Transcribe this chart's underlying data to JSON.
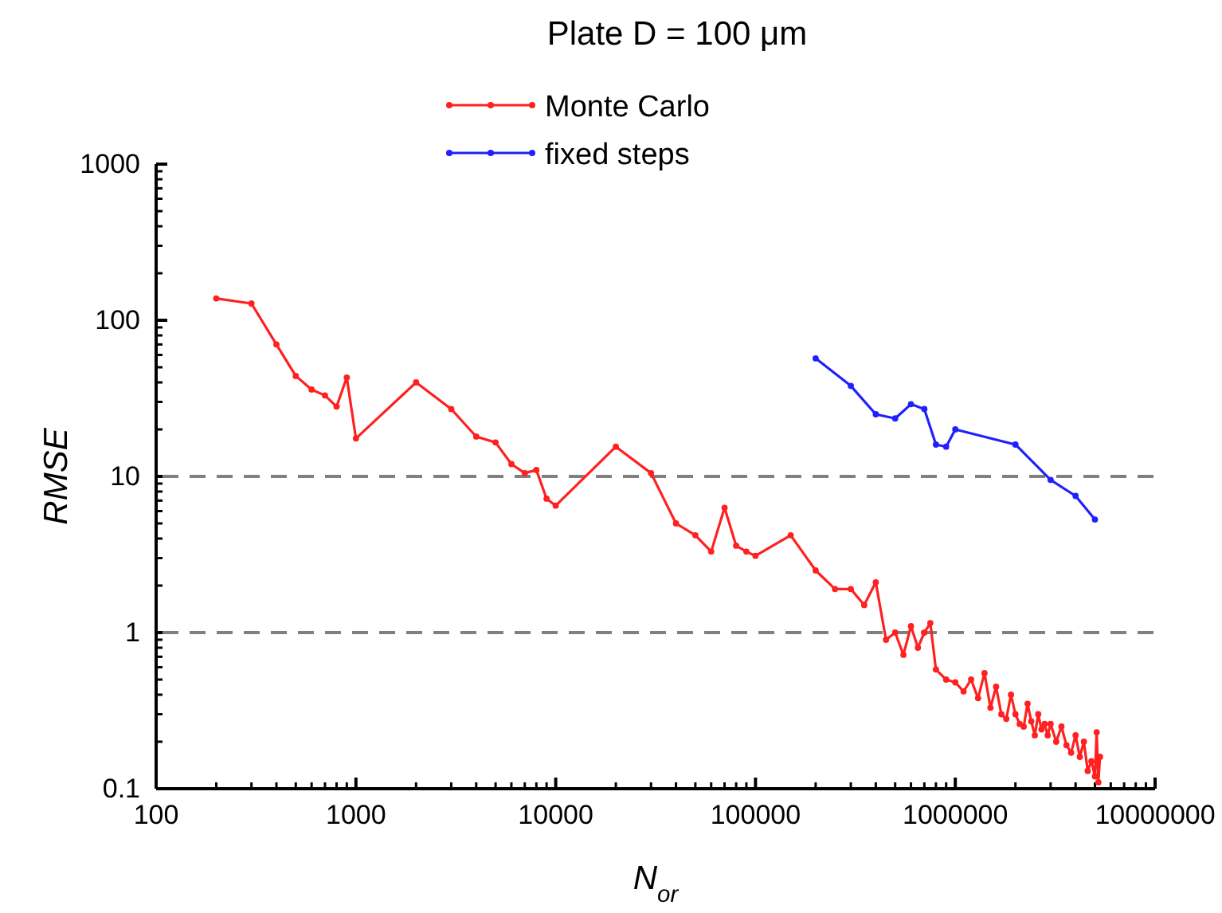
{
  "chart_data": {
    "type": "line",
    "title": "Plate D = 100 μm",
    "xlabel": "N$_{or}$",
    "ylabel": "RMSE",
    "log": "xy",
    "marker": "circle",
    "line_style": "solid",
    "legend": "top",
    "grid": false,
    "xlim": [
      100,
      10000000
    ],
    "xticks": [
      100,
      1000,
      10000,
      100000,
      1000000,
      10000000
    ],
    "ylim": [
      0.1,
      1000
    ],
    "yticks": [
      0.1,
      1,
      10,
      100,
      1000
    ],
    "ref_lines": [
      {
        "axis": "y",
        "value": 10,
        "color": "#808080",
        "line_style": "dashed"
      },
      {
        "axis": "y",
        "value": 1,
        "color": "#808080",
        "line_style": "dashed"
      }
    ],
    "series": [
      {
        "name": "Monte Carlo",
        "color": "#ff2020",
        "x": [
          200,
          300,
          400,
          500,
          600,
          700,
          800,
          900,
          1000,
          2000,
          3000,
          4000,
          5000,
          6000,
          7000,
          8000,
          9000,
          10000,
          20000,
          30000,
          40000,
          50000,
          60000,
          70000,
          80000,
          90000,
          100000,
          150000,
          200000,
          250000,
          300000,
          350000,
          400000,
          450000,
          500000,
          550000,
          600000,
          650000,
          700000,
          750000,
          800000,
          900000,
          1000000,
          1100000,
          1200000,
          1300000,
          1400000,
          1500000,
          1600000,
          1700000,
          1800000,
          1900000,
          2000000,
          2100000,
          2200000,
          2300000,
          2400000,
          2500000,
          2600000,
          2700000,
          2800000,
          2900000,
          3000000,
          3200000,
          3400000,
          3600000,
          3800000,
          4000000,
          4200000,
          4400000,
          4600000,
          4800000,
          5000000,
          5100000,
          5200000,
          5300000
        ],
        "values": [
          138,
          128,
          70,
          44,
          36,
          33,
          28,
          43,
          17.5,
          40,
          27,
          18,
          16.5,
          12,
          10.5,
          11,
          7.2,
          6.5,
          15.5,
          10.5,
          5,
          4.2,
          3.3,
          6.3,
          3.6,
          3.3,
          3.1,
          4.2,
          2.5,
          1.9,
          1.9,
          1.5,
          2.1,
          0.9,
          1.0,
          0.72,
          1.1,
          0.8,
          1.0,
          1.15,
          0.58,
          0.5,
          0.48,
          0.42,
          0.5,
          0.38,
          0.55,
          0.33,
          0.45,
          0.3,
          0.28,
          0.4,
          0.3,
          0.26,
          0.25,
          0.35,
          0.27,
          0.22,
          0.3,
          0.24,
          0.26,
          0.22,
          0.26,
          0.2,
          0.25,
          0.19,
          0.17,
          0.22,
          0.16,
          0.2,
          0.13,
          0.15,
          0.12,
          0.23,
          0.11,
          0.16
        ]
      },
      {
        "name": "fixed steps",
        "color": "#2020ff",
        "x": [
          200000,
          300000,
          400000,
          500000,
          600000,
          700000,
          800000,
          900000,
          1000000,
          2000000,
          3000000,
          4000000,
          5000000
        ],
        "values": [
          57,
          38,
          25,
          23.5,
          29,
          27,
          16,
          15.5,
          20,
          16,
          9.5,
          7.5,
          5.3
        ]
      }
    ]
  }
}
